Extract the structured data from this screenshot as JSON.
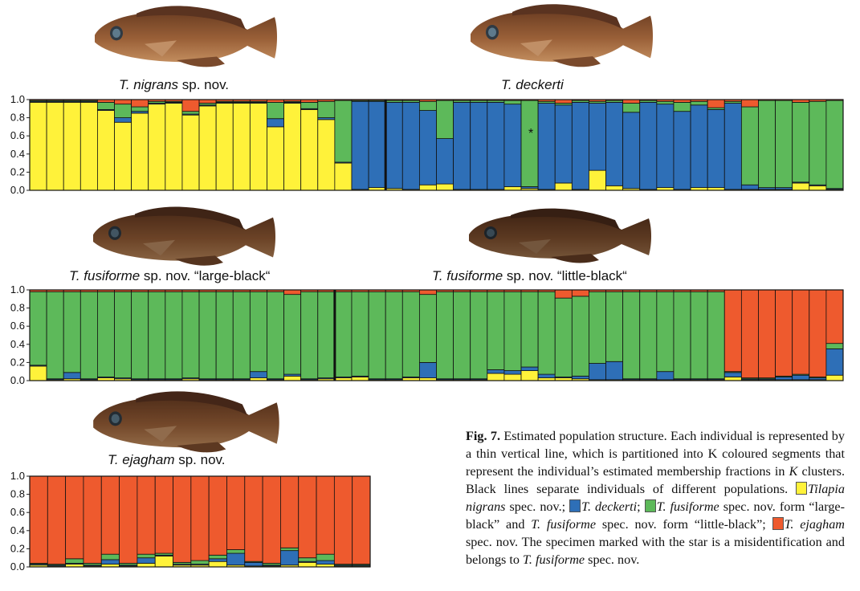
{
  "colors": {
    "yellow": "#FFF23A",
    "blue": "#2E6FB7",
    "green": "#5DB95A",
    "red": "#EE5A2E",
    "fish_body": "#8A5A36"
  },
  "fish_labels": [
    {
      "species": "T. nigrans",
      "suffix": " sp. nov."
    },
    {
      "species": "T. deckerti",
      "suffix": ""
    },
    {
      "species": "T. fusiforme",
      "suffix": " sp. nov. “large-black“"
    },
    {
      "species": "T. fusiforme",
      "suffix": " sp. nov. “little-black“"
    },
    {
      "species": "T. ejagham",
      "suffix": " sp. nov."
    }
  ],
  "star_mark": "*",
  "caption": {
    "fig": "Fig. 7.",
    "intro": " Estimated population structure. Each individual is represented by a thin vertical line, which is partitioned into K coloured segments that represent the individual’s estimated membership fractions in ",
    "k": "K",
    "after_k": " clusters. Black lines separate individuals of different populations. ",
    "l1_sp": "Tilapia nigrans",
    "l1_rest": " spec. nov.; ",
    "l2_sp": "T. deckerti",
    "l2_rest": "; ",
    "l3_sp": "T. fusiforme",
    "l3_mid": " spec. nov. form “large-black” and ",
    "l3_sp2": "T. fusiforme",
    "l3_rest": " spec. nov. form “little-black”; ",
    "l4_sp": "T. ejagham",
    "l4_rest": " spec. nov. The specimen marked with the star is a misidentification and belongs to ",
    "l5_sp": "T. fusiforme",
    "l5_rest": " spec. nov."
  },
  "chart_data": [
    {
      "type": "bar",
      "stacked": true,
      "ylim": [
        0,
        1
      ],
      "yticks": [
        "0.0",
        "0.2",
        "0.4",
        "0.6",
        "0.8",
        "1.0"
      ],
      "segments": [
        "yellow",
        "blue",
        "green",
        "red"
      ],
      "separators_after": [
        20
      ],
      "bars": [
        [
          0.97,
          0.01,
          0.01,
          0.01
        ],
        [
          0.97,
          0.01,
          0.01,
          0.01
        ],
        [
          0.97,
          0.01,
          0.01,
          0.01
        ],
        [
          0.97,
          0.01,
          0.01,
          0.01
        ],
        [
          0.88,
          0.01,
          0.08,
          0.03
        ],
        [
          0.75,
          0.05,
          0.15,
          0.05
        ],
        [
          0.85,
          0.02,
          0.05,
          0.08
        ],
        [
          0.95,
          0.01,
          0.02,
          0.02
        ],
        [
          0.96,
          0.01,
          0.01,
          0.02
        ],
        [
          0.83,
          0.01,
          0.03,
          0.13
        ],
        [
          0.93,
          0.01,
          0.02,
          0.04
        ],
        [
          0.96,
          0.01,
          0.01,
          0.02
        ],
        [
          0.96,
          0.01,
          0.01,
          0.02
        ],
        [
          0.96,
          0.01,
          0.01,
          0.02
        ],
        [
          0.7,
          0.09,
          0.18,
          0.03
        ],
        [
          0.96,
          0.01,
          0.01,
          0.02
        ],
        [
          0.89,
          0.01,
          0.07,
          0.03
        ],
        [
          0.78,
          0.02,
          0.18,
          0.02
        ],
        [
          0.3,
          0.01,
          0.68,
          0.01
        ],
        [
          0.01,
          0.97,
          0.01,
          0.01
        ],
        [
          0.03,
          0.95,
          0.01,
          0.01
        ],
        [
          0.02,
          0.95,
          0.02,
          0.01
        ],
        [
          0.01,
          0.96,
          0.02,
          0.01
        ],
        [
          0.06,
          0.82,
          0.1,
          0.02
        ],
        [
          0.07,
          0.5,
          0.42,
          0.01
        ],
        [
          0.01,
          0.96,
          0.02,
          0.01
        ],
        [
          0.01,
          0.96,
          0.02,
          0.01
        ],
        [
          0.01,
          0.96,
          0.02,
          0.01
        ],
        [
          0.04,
          0.91,
          0.04,
          0.01
        ],
        [
          0.02,
          0.02,
          0.95,
          0.01
        ],
        [
          0.01,
          0.95,
          0.02,
          0.02
        ],
        [
          0.08,
          0.86,
          0.02,
          0.04
        ],
        [
          0.01,
          0.96,
          0.02,
          0.01
        ],
        [
          0.22,
          0.74,
          0.02,
          0.02
        ],
        [
          0.05,
          0.92,
          0.02,
          0.01
        ],
        [
          0.02,
          0.84,
          0.1,
          0.04
        ],
        [
          0.01,
          0.96,
          0.02,
          0.01
        ],
        [
          0.03,
          0.92,
          0.03,
          0.02
        ],
        [
          0.01,
          0.86,
          0.1,
          0.03
        ],
        [
          0.03,
          0.91,
          0.04,
          0.02
        ],
        [
          0.03,
          0.86,
          0.02,
          0.09
        ],
        [
          0.01,
          0.95,
          0.02,
          0.02
        ],
        [
          0.01,
          0.05,
          0.86,
          0.08
        ],
        [
          0.01,
          0.02,
          0.96,
          0.01
        ],
        [
          0.01,
          0.02,
          0.96,
          0.01
        ],
        [
          0.08,
          0.01,
          0.88,
          0.03
        ],
        [
          0.05,
          0.01,
          0.92,
          0.02
        ],
        [
          0.01,
          0.01,
          0.97,
          0.01
        ]
      ]
    },
    {
      "type": "bar",
      "stacked": true,
      "ylim": [
        0,
        1
      ],
      "yticks": [
        "0.0",
        "0.2",
        "0.4",
        "0.6",
        "0.8",
        "1.0"
      ],
      "segments": [
        "yellow",
        "blue",
        "green",
        "red"
      ],
      "separators_after": [
        17
      ],
      "bars": [
        [
          0.16,
          0.01,
          0.81,
          0.02
        ],
        [
          0.01,
          0.01,
          0.96,
          0.02
        ],
        [
          0.02,
          0.07,
          0.89,
          0.02
        ],
        [
          0.01,
          0.01,
          0.96,
          0.02
        ],
        [
          0.03,
          0.01,
          0.94,
          0.02
        ],
        [
          0.02,
          0.01,
          0.95,
          0.02
        ],
        [
          0.01,
          0.01,
          0.96,
          0.02
        ],
        [
          0.01,
          0.01,
          0.96,
          0.02
        ],
        [
          0.01,
          0.01,
          0.96,
          0.02
        ],
        [
          0.02,
          0.01,
          0.95,
          0.02
        ],
        [
          0.01,
          0.01,
          0.96,
          0.02
        ],
        [
          0.01,
          0.01,
          0.96,
          0.02
        ],
        [
          0.01,
          0.01,
          0.96,
          0.02
        ],
        [
          0.03,
          0.07,
          0.88,
          0.02
        ],
        [
          0.01,
          0.01,
          0.96,
          0.02
        ],
        [
          0.05,
          0.02,
          0.88,
          0.05
        ],
        [
          0.01,
          0.01,
          0.96,
          0.02
        ],
        [
          0.02,
          0.01,
          0.95,
          0.02
        ],
        [
          0.03,
          0.01,
          0.94,
          0.02
        ],
        [
          0.04,
          0.01,
          0.93,
          0.02
        ],
        [
          0.01,
          0.01,
          0.96,
          0.02
        ],
        [
          0.01,
          0.01,
          0.96,
          0.02
        ],
        [
          0.03,
          0.01,
          0.94,
          0.02
        ],
        [
          0.03,
          0.17,
          0.75,
          0.05
        ],
        [
          0.01,
          0.01,
          0.96,
          0.02
        ],
        [
          0.01,
          0.01,
          0.96,
          0.02
        ],
        [
          0.01,
          0.01,
          0.96,
          0.02
        ],
        [
          0.08,
          0.04,
          0.86,
          0.02
        ],
        [
          0.07,
          0.04,
          0.87,
          0.02
        ],
        [
          0.11,
          0.04,
          0.83,
          0.02
        ],
        [
          0.03,
          0.04,
          0.91,
          0.02
        ],
        [
          0.03,
          0.01,
          0.87,
          0.09
        ],
        [
          0.02,
          0.03,
          0.88,
          0.07
        ],
        [
          0.01,
          0.18,
          0.79,
          0.02
        ],
        [
          0.01,
          0.2,
          0.77,
          0.02
        ],
        [
          0.01,
          0.01,
          0.96,
          0.02
        ],
        [
          0.01,
          0.01,
          0.96,
          0.02
        ],
        [
          0.01,
          0.09,
          0.88,
          0.02
        ],
        [
          0.01,
          0.01,
          0.96,
          0.02
        ],
        [
          0.01,
          0.01,
          0.96,
          0.02
        ],
        [
          0.01,
          0.01,
          0.96,
          0.02
        ],
        [
          0.04,
          0.05,
          0.01,
          0.9
        ],
        [
          0.01,
          0.01,
          0.01,
          0.97
        ],
        [
          0.01,
          0.01,
          0.01,
          0.97
        ],
        [
          0.01,
          0.03,
          0.01,
          0.95
        ],
        [
          0.01,
          0.05,
          0.01,
          0.93
        ],
        [
          0.01,
          0.02,
          0.01,
          0.96
        ],
        [
          0.06,
          0.29,
          0.06,
          0.59
        ]
      ]
    },
    {
      "type": "bar",
      "stacked": true,
      "ylim": [
        0,
        1
      ],
      "yticks": [
        "0.0",
        "0.2",
        "0.4",
        "0.6",
        "0.8",
        "1.0"
      ],
      "segments": [
        "yellow",
        "blue",
        "green",
        "red"
      ],
      "separators_after": [],
      "bars": [
        [
          0.02,
          0.01,
          0.01,
          0.96
        ],
        [
          0.01,
          0.01,
          0.01,
          0.97
        ],
        [
          0.03,
          0.01,
          0.05,
          0.91
        ],
        [
          0.01,
          0.01,
          0.02,
          0.96
        ],
        [
          0.03,
          0.05,
          0.06,
          0.86
        ],
        [
          0.01,
          0.01,
          0.02,
          0.96
        ],
        [
          0.04,
          0.06,
          0.04,
          0.86
        ],
        [
          0.12,
          0.01,
          0.02,
          0.85
        ],
        [
          0.02,
          0.01,
          0.02,
          0.95
        ],
        [
          0.02,
          0.01,
          0.04,
          0.93
        ],
        [
          0.06,
          0.03,
          0.04,
          0.87
        ],
        [
          0.02,
          0.13,
          0.04,
          0.81
        ],
        [
          0.01,
          0.04,
          0.01,
          0.94
        ],
        [
          0.01,
          0.01,
          0.02,
          0.96
        ],
        [
          0.02,
          0.16,
          0.03,
          0.79
        ],
        [
          0.05,
          0.01,
          0.04,
          0.9
        ],
        [
          0.03,
          0.04,
          0.07,
          0.86
        ],
        [
          0.01,
          0.01,
          0.01,
          0.97
        ],
        [
          0.01,
          0.01,
          0.01,
          0.97
        ]
      ]
    }
  ]
}
